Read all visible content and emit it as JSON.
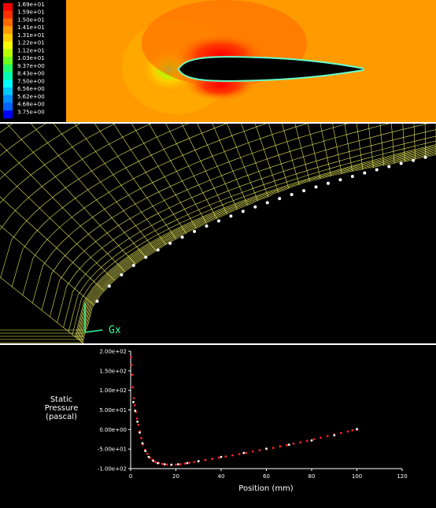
{
  "colormap": {
    "labels": [
      "1.69e+01",
      "1.59e+01",
      "1.50e+01",
      "1.41e+01",
      "1.31e+01",
      "1.22e+01",
      "1.12e+01",
      "1.03e+01",
      "9.37e+00",
      "8.43e+00",
      "7.50e+00",
      "6.56e+00",
      "5.62e+00",
      "4.68e+00",
      "3.75e+00"
    ],
    "colors": [
      "#ff0000",
      "#ff3000",
      "#ff6a00",
      "#ff9c00",
      "#ffce00",
      "#f4ff00",
      "#b8ff00",
      "#6eff1a",
      "#22ff66",
      "#00ffb0",
      "#00ffff",
      "#00c8ff",
      "#0090ff",
      "#0064ff",
      "#0000ff"
    ]
  },
  "mesh": {
    "axis_label": "Gx",
    "colors": {
      "grid": "#ffff66",
      "body": "#000000",
      "axis": "#33ff99"
    }
  },
  "chart_data": {
    "type": "scatter",
    "title": "",
    "xlabel": "Position (mm)",
    "ylabel_lines": [
      "Static",
      "Pressure",
      "(pascal)"
    ],
    "xlim": [
      0,
      120
    ],
    "ylim": [
      -100,
      200
    ],
    "xticks": [
      "0",
      "20",
      "40",
      "60",
      "80",
      "100",
      "120"
    ],
    "yticks": [
      "2.00e+02",
      "1.50e+02",
      "1.00e+02",
      "5.00e+01",
      "0.00e+00",
      "-5.00e+01",
      "-1.00e+02"
    ],
    "series": [
      {
        "color": "#ff2222",
        "x": [
          0.2,
          0.4,
          0.7,
          1.0,
          1.4,
          1.8,
          2.3,
          2.8,
          3.4,
          4.0,
          4.7,
          5.5,
          6.4,
          7.4,
          8.5,
          9.7,
          11,
          12.5,
          14,
          16,
          18,
          20,
          22,
          24,
          26,
          28,
          30,
          33,
          36,
          39,
          42,
          45,
          48,
          51,
          54,
          57,
          60,
          63,
          66,
          69,
          72,
          75,
          78,
          81,
          84,
          87,
          90,
          93,
          96,
          98,
          100
        ],
        "y": [
          185,
          165,
          140,
          108,
          80,
          62,
          45,
          28,
          12,
          -5,
          -22,
          -38,
          -52,
          -62,
          -72,
          -78,
          -83,
          -86,
          -88,
          -90,
          -91,
          -90,
          -89,
          -87,
          -85,
          -83,
          -81,
          -78,
          -75,
          -72,
          -69,
          -66,
          -63,
          -60,
          -56,
          -53,
          -50,
          -47,
          -43,
          -40,
          -36,
          -33,
          -29,
          -25,
          -21,
          -17,
          -13,
          -9,
          -5,
          -2,
          0
        ]
      },
      {
        "color": "#ffffff",
        "x": [
          1.2,
          2.0,
          3.0,
          4.0,
          5.2,
          6.5,
          8,
          10,
          12,
          15,
          18,
          21,
          25,
          30,
          40,
          50,
          60,
          70,
          80,
          90,
          100
        ],
        "y": [
          70,
          48,
          20,
          -8,
          -35,
          -55,
          -70,
          -80,
          -86,
          -89,
          -90,
          -89,
          -86,
          -81,
          -70,
          -60,
          -49,
          -39,
          -28,
          -15,
          1
        ]
      }
    ]
  }
}
